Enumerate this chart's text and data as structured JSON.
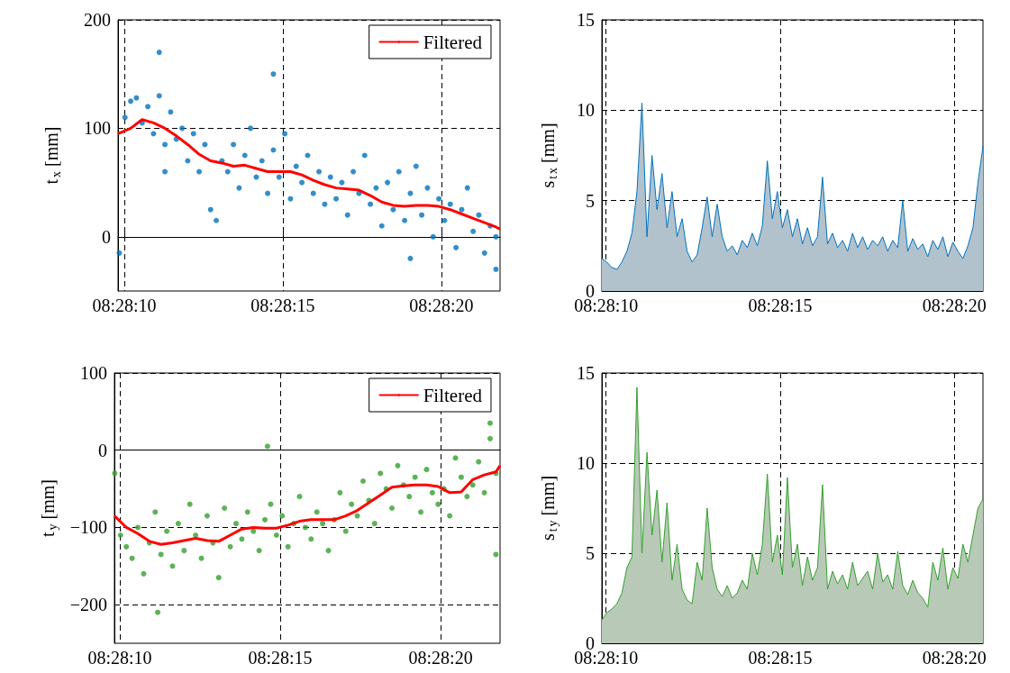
{
  "chart_data": [
    {
      "type": "scatter",
      "ylabel": "t$_{x}$ [mm]",
      "xlim": [
        8.469389,
        8.472736
      ],
      "ylim": [
        -50,
        200
      ],
      "yticks": [
        0,
        100,
        200
      ],
      "xticks": [
        {
          "value": 8.469444,
          "label": "08:28:10"
        },
        {
          "value": 8.470833,
          "label": "08:28:15"
        },
        {
          "value": 8.472222,
          "label": "08:28:20"
        }
      ],
      "grid": true,
      "legend": "top right",
      "series": [
        {
          "marker": "circle",
          "color": "#0072bd",
          "x": [
            8.4694,
            8.46945,
            8.4695,
            8.46955,
            8.4696,
            8.46965,
            8.4697,
            8.46975,
            8.4698,
            8.46985,
            8.4699,
            8.46995,
            8.47,
            8.47005,
            8.4701,
            8.47015,
            8.4702,
            8.47025,
            8.4703,
            8.47035,
            8.4704,
            8.47045,
            8.4705,
            8.47055,
            8.4706,
            8.47065,
            8.4707,
            8.47075,
            8.4708,
            8.47085,
            8.4709,
            8.47095,
            8.471,
            8.47105,
            8.4711,
            8.47115,
            8.4712,
            8.47125,
            8.4713,
            8.47135,
            8.4714,
            8.47145,
            8.4715,
            8.47155,
            8.4716,
            8.47165,
            8.4717,
            8.47175,
            8.4718,
            8.47185,
            8.4719,
            8.47195,
            8.472,
            8.47205,
            8.4721,
            8.47215,
            8.4722,
            8.47225,
            8.4723,
            8.47235,
            8.4724,
            8.47245,
            8.4725,
            8.47255,
            8.4726,
            8.47265,
            8.4727,
            8.46975,
            8.47075,
            8.4698,
            8.47195,
            8.4727
          ],
          "values": [
            -15,
            110,
            125,
            128,
            105,
            120,
            95,
            130,
            85,
            115,
            90,
            100,
            70,
            95,
            60,
            85,
            25,
            15,
            70,
            60,
            85,
            45,
            75,
            100,
            55,
            70,
            40,
            80,
            55,
            95,
            35,
            65,
            50,
            75,
            40,
            60,
            30,
            55,
            35,
            50,
            20,
            60,
            40,
            75,
            30,
            45,
            10,
            50,
            25,
            60,
            15,
            40,
            65,
            20,
            45,
            0,
            35,
            15,
            30,
            -10,
            25,
            45,
            5,
            20,
            -15,
            10,
            -30,
            170,
            150,
            60,
            -20,
            0
          ]
        },
        {
          "type": "line",
          "marker": "none",
          "name": "Filtered",
          "color": "#ff0000",
          "x": [
            8.46939,
            8.4695,
            8.4696,
            8.4697,
            8.4698,
            8.4699,
            8.47,
            8.4701,
            8.4702,
            8.4703,
            8.4704,
            8.4705,
            8.4706,
            8.4707,
            8.4708,
            8.4709,
            8.471,
            8.4711,
            8.4712,
            8.4713,
            8.4714,
            8.4715,
            8.4716,
            8.4717,
            8.4718,
            8.4719,
            8.472,
            8.4721,
            8.4722,
            8.4723,
            8.4724,
            8.4725,
            8.4726,
            8.4727,
            8.472736
          ],
          "values": [
            95,
            100,
            108,
            105,
            100,
            93,
            85,
            76,
            70,
            68,
            65,
            66,
            63,
            60,
            60,
            60,
            57,
            52,
            48,
            45,
            44,
            43,
            38,
            32,
            29,
            28,
            29,
            29,
            28,
            25,
            21,
            17,
            13,
            9,
            7
          ]
        }
      ]
    },
    {
      "type": "area",
      "ylabel": "s$_{t}$$_{x}$ [mm]",
      "xlim": [
        8.46941,
        8.47245
      ],
      "ylim": [
        0,
        15
      ],
      "yticks": [
        0,
        5,
        10,
        15
      ],
      "xticks": [
        {
          "value": 8.469444,
          "label": "08:28:10"
        },
        {
          "value": 8.470833,
          "label": "08:28:15"
        },
        {
          "value": 8.472222,
          "label": "08:28:20"
        }
      ],
      "grid": true,
      "series": [
        {
          "color": "#0072bd",
          "x": [
            8.46941,
            8.46945,
            8.46949,
            8.46953,
            8.46957,
            8.46961,
            8.46965,
            8.46969,
            8.46973,
            8.46977,
            8.46981,
            8.46985,
            8.46989,
            8.46993,
            8.46997,
            8.47001,
            8.47005,
            8.47009,
            8.47013,
            8.47017,
            8.47021,
            8.47025,
            8.47029,
            8.47033,
            8.47037,
            8.47041,
            8.47045,
            8.47049,
            8.47053,
            8.47057,
            8.47061,
            8.47065,
            8.47069,
            8.47073,
            8.47077,
            8.47081,
            8.47085,
            8.47089,
            8.47093,
            8.47097,
            8.47101,
            8.47105,
            8.47109,
            8.47113,
            8.47117,
            8.47121,
            8.47125,
            8.47129,
            8.47133,
            8.47137,
            8.47141,
            8.47145,
            8.47149,
            8.47153,
            8.47157,
            8.47161,
            8.47165,
            8.47169,
            8.47173,
            8.47177,
            8.47181,
            8.47185,
            8.47189,
            8.47193,
            8.47197,
            8.47201,
            8.47205,
            8.47209,
            8.47213,
            8.47217,
            8.47221,
            8.47225,
            8.47229,
            8.47233,
            8.47237,
            8.47241,
            8.47245
          ],
          "values": [
            1.8,
            1.6,
            1.3,
            1.2,
            1.6,
            2.2,
            3.2,
            5.5,
            10.4,
            3.0,
            7.5,
            4.5,
            6.5,
            3.5,
            5.5,
            3.0,
            4.0,
            2.2,
            1.6,
            2.0,
            3.5,
            5.2,
            3.0,
            4.8,
            3.0,
            2.2,
            2.5,
            2.0,
            2.8,
            2.4,
            3.2,
            2.5,
            3.6,
            7.2,
            4.0,
            5.5,
            3.5,
            4.5,
            3.0,
            4.0,
            2.6,
            3.5,
            2.5,
            3.0,
            6.3,
            2.6,
            3.2,
            2.4,
            2.8,
            2.2,
            3.2,
            2.4,
            3.0,
            2.3,
            2.8,
            2.5,
            3.0,
            2.2,
            2.8,
            2.4,
            5.0,
            2.2,
            2.9,
            2.3,
            2.6,
            1.9,
            2.8,
            2.3,
            3.0,
            1.9,
            2.7,
            2.2,
            1.8,
            2.5,
            3.5,
            6.0,
            8.0
          ]
        }
      ]
    },
    {
      "type": "scatter",
      "ylabel": "t$_{y}$ [mm]",
      "xlim": [
        8.469397,
        8.472736
      ],
      "ylim": [
        -250,
        100
      ],
      "yticks": [
        {
          "value": -200,
          "label": "−200"
        },
        {
          "value": -100,
          "label": "−100"
        },
        0,
        100
      ],
      "xticks": [
        {
          "value": 8.469444,
          "label": "08:28:10"
        },
        {
          "value": 8.470833,
          "label": "08:28:15"
        },
        {
          "value": 8.472222,
          "label": "08:28:20"
        }
      ],
      "grid": true,
      "legend": "top right",
      "series": [
        {
          "marker": "circle",
          "color": "#33a02c",
          "x": [
            8.4694,
            8.46945,
            8.4695,
            8.46955,
            8.4696,
            8.46965,
            8.4697,
            8.46975,
            8.4698,
            8.46985,
            8.4699,
            8.46995,
            8.47,
            8.47005,
            8.4701,
            8.47015,
            8.4702,
            8.47025,
            8.4703,
            8.47035,
            8.4704,
            8.47045,
            8.4705,
            8.47055,
            8.4706,
            8.47065,
            8.4707,
            8.47075,
            8.4708,
            8.47085,
            8.4709,
            8.47095,
            8.471,
            8.47105,
            8.4711,
            8.47115,
            8.4712,
            8.47125,
            8.4713,
            8.47135,
            8.4714,
            8.47145,
            8.4715,
            8.47155,
            8.4716,
            8.47165,
            8.4717,
            8.47175,
            8.4718,
            8.47185,
            8.4719,
            8.47195,
            8.472,
            8.47205,
            8.4721,
            8.47215,
            8.4722,
            8.47225,
            8.4723,
            8.47235,
            8.4724,
            8.47245,
            8.4725,
            8.47255,
            8.4726,
            8.47265,
            8.4727,
            8.469772,
            8.470722,
            8.47265,
            8.4727
          ],
          "values": [
            -30,
            -110,
            -125,
            -140,
            -100,
            -160,
            -120,
            -80,
            -135,
            -105,
            -150,
            -95,
            -130,
            -70,
            -110,
            -140,
            -85,
            -120,
            -165,
            -75,
            -125,
            -95,
            -115,
            -80,
            -105,
            -130,
            -90,
            -70,
            -110,
            -85,
            -125,
            -95,
            -60,
            -100,
            -115,
            -80,
            -95,
            -130,
            -90,
            -55,
            -105,
            -70,
            -85,
            -40,
            -65,
            -95,
            -30,
            -50,
            -75,
            -20,
            -45,
            -60,
            -35,
            -80,
            -25,
            -55,
            -70,
            -50,
            -85,
            -10,
            -35,
            -60,
            -45,
            -15,
            -55,
            15,
            -30,
            -210,
            5,
            35,
            -135
          ]
        },
        {
          "type": "line",
          "marker": "none",
          "name": "Filtered",
          "color": "#ff0000",
          "x": [
            8.469397,
            8.4695,
            8.4696,
            8.4697,
            8.4698,
            8.4699,
            8.47,
            8.4701,
            8.4702,
            8.4703,
            8.4704,
            8.4705,
            8.4706,
            8.4707,
            8.4708,
            8.4709,
            8.471,
            8.4711,
            8.4712,
            8.4713,
            8.4714,
            8.4715,
            8.4716,
            8.4717,
            8.4718,
            8.4719,
            8.472,
            8.4721,
            8.4722,
            8.4723,
            8.4724,
            8.4725,
            8.4726,
            8.4727,
            8.472736
          ],
          "values": [
            -85,
            -100,
            -108,
            -118,
            -122,
            -120,
            -117,
            -114,
            -117,
            -118,
            -110,
            -102,
            -100,
            -101,
            -101,
            -97,
            -92,
            -90,
            -90,
            -90,
            -85,
            -78,
            -68,
            -58,
            -48,
            -46,
            -45,
            -45,
            -47,
            -55,
            -54,
            -38,
            -32,
            -28,
            -20
          ]
        }
      ]
    },
    {
      "type": "area",
      "ylabel": "s$_{t}$$_{y}$ [mm]",
      "xlim": [
        8.46941,
        8.47245
      ],
      "ylim": [
        0,
        15
      ],
      "yticks": [
        0,
        5,
        10,
        15
      ],
      "xticks": [
        {
          "value": 8.469444,
          "label": "08:28:10"
        },
        {
          "value": 8.470833,
          "label": "08:28:15"
        },
        {
          "value": 8.472222,
          "label": "08:28:20"
        }
      ],
      "grid": true,
      "series": [
        {
          "color": "#33a02c",
          "x": [
            8.46941,
            8.46945,
            8.46949,
            8.46953,
            8.46957,
            8.46961,
            8.46965,
            8.46969,
            8.46973,
            8.46977,
            8.46981,
            8.46985,
            8.46989,
            8.46993,
            8.46997,
            8.47001,
            8.47005,
            8.47009,
            8.47013,
            8.47017,
            8.47021,
            8.47025,
            8.47029,
            8.47033,
            8.47037,
            8.47041,
            8.47045,
            8.47049,
            8.47053,
            8.47057,
            8.47061,
            8.47065,
            8.47069,
            8.47073,
            8.47077,
            8.47081,
            8.47085,
            8.47089,
            8.47093,
            8.47097,
            8.47101,
            8.47105,
            8.47109,
            8.47113,
            8.47117,
            8.47121,
            8.47125,
            8.47129,
            8.47133,
            8.47137,
            8.47141,
            8.47145,
            8.47149,
            8.47153,
            8.47157,
            8.47161,
            8.47165,
            8.47169,
            8.47173,
            8.47177,
            8.47181,
            8.47185,
            8.47189,
            8.47193,
            8.47197,
            8.47201,
            8.47205,
            8.47209,
            8.47213,
            8.47217,
            8.47221,
            8.47225,
            8.47229,
            8.47233,
            8.47237,
            8.47241,
            8.47245
          ],
          "values": [
            1.3,
            1.7,
            1.9,
            2.2,
            2.8,
            4.2,
            4.8,
            14.2,
            5.0,
            10.6,
            6.0,
            8.5,
            4.5,
            7.8,
            3.5,
            5.5,
            3.0,
            2.4,
            2.2,
            4.5,
            3.5,
            7.5,
            4.2,
            3.0,
            2.6,
            3.2,
            2.5,
            2.8,
            3.5,
            3.0,
            5.0,
            3.8,
            5.5,
            9.4,
            4.5,
            6.0,
            3.8,
            9.2,
            4.2,
            5.5,
            3.2,
            4.8,
            3.5,
            4.2,
            8.8,
            3.0,
            4.0,
            3.3,
            3.8,
            3.0,
            4.5,
            3.2,
            3.6,
            4.0,
            3.0,
            5.0,
            3.4,
            3.8,
            3.0,
            5.1,
            3.2,
            2.7,
            3.5,
            2.8,
            2.5,
            2.0,
            4.5,
            3.5,
            5.3,
            3.0,
            4.2,
            3.6,
            5.5,
            4.5,
            6.0,
            7.5,
            8.0
          ]
        }
      ]
    }
  ]
}
